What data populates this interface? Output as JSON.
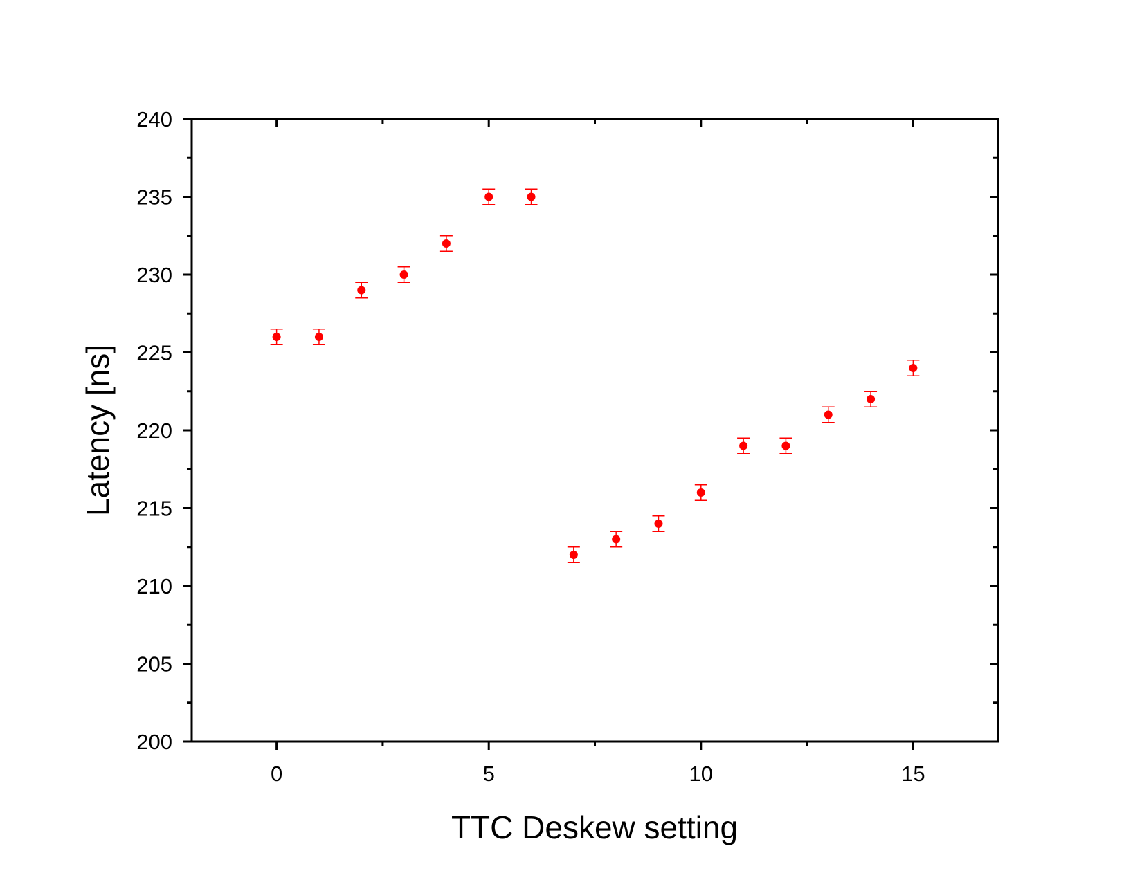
{
  "chart_data": {
    "type": "scatter",
    "title": "",
    "xlabel": "TTC Deskew setting",
    "ylabel": "Latency [ns]",
    "xlim": [
      -2,
      17
    ],
    "ylim": [
      200,
      240
    ],
    "x_major_ticks": [
      0,
      5,
      10,
      15
    ],
    "x_minor_ticks": [
      2.5,
      7.5,
      12.5
    ],
    "y_major_ticks": [
      200,
      205,
      210,
      215,
      220,
      225,
      230,
      235,
      240
    ],
    "y_minor_ticks": [
      202.5,
      207.5,
      212.5,
      217.5,
      222.5,
      227.5,
      232.5,
      237.5
    ],
    "grid": false,
    "legend": "none",
    "marker_color": "#ff0000",
    "series": [
      {
        "x": [
          0,
          1,
          2,
          3,
          4,
          5,
          6,
          7,
          8,
          9,
          10,
          11,
          12,
          13,
          14,
          15
        ],
        "y": [
          226,
          226,
          229,
          230,
          232,
          235,
          235,
          212,
          213,
          214,
          216,
          219,
          219,
          221,
          222,
          224
        ],
        "error": [
          0.5,
          0.5,
          0.5,
          0.5,
          0.5,
          0.5,
          0.5,
          0.5,
          0.5,
          0.5,
          0.5,
          0.5,
          0.5,
          0.5,
          0.5,
          0.5
        ]
      }
    ]
  }
}
